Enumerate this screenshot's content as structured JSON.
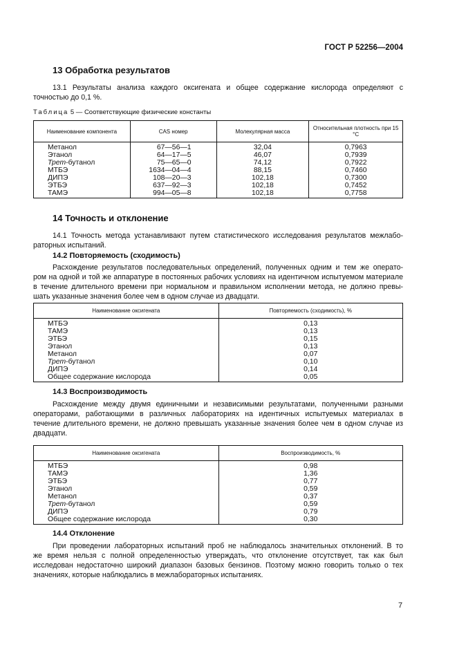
{
  "header": {
    "standard": "ГОСТ Р 52256—2004"
  },
  "s13": {
    "title": "13  Обработка результатов",
    "p1": [
      "13.1  Результаты  анализа  каждого  оксигената  и  общее  содержание  кислорода  определяют  с",
      "точностью до 0,1 %."
    ],
    "table_caption_prefix": "Таблица",
    "table_caption": " 5 — Соответствующие физические константы",
    "table": {
      "headers": [
        "Наименование компонента",
        "CAS номер",
        "Молекулярная масса",
        "Относительная плотность при 15 °С"
      ],
      "rows": [
        {
          "prefix": "",
          "name": "Метанол",
          "cas": "67—56—1",
          "mass": "32,04",
          "density": "0,7963"
        },
        {
          "prefix": "",
          "name": "Этанол",
          "cas": "64—17—5",
          "mass": "46,07",
          "density": "0,7939"
        },
        {
          "prefix": "Трет",
          "name": "-бутанол",
          "cas": "75—65—0",
          "mass": "74,12",
          "density": "0,7922"
        },
        {
          "prefix": "",
          "name": "МТБЭ",
          "cas": "1634—04—4",
          "mass": "88,15",
          "density": "0,7460"
        },
        {
          "prefix": "",
          "name": "ДИПЭ",
          "cas": "108—20—3",
          "mass": "102,18",
          "density": "0,7300"
        },
        {
          "prefix": "",
          "name": "ЭТБЭ",
          "cas": "637—92—3",
          "mass": "102,18",
          "density": "0,7452"
        },
        {
          "prefix": "",
          "name": "ТАМЭ",
          "cas": "994—05—8",
          "mass": "102,18",
          "density": "0,7758"
        }
      ]
    }
  },
  "s14": {
    "title": "14  Точность и отклонение",
    "p1": [
      "14.1  Точность метода устанавливают путем статистического исследования результатов межлабо-",
      "раторных испытаний."
    ],
    "s2_title": "14.2  Повторяемость (сходимость)",
    "s2_para": [
      "Расхождение результатов последовательных определений, полученных одним и тем же операто-",
      "ром на одной и той же аппаратуре в постоянных рабочих условиях на идентичном испытуемом материале",
      "в течение длительного времени при нормальном и правильном исполнении метода, не должно превы-",
      "шать указанные значения более чем в одном случае из двадцати."
    ],
    "s2_table": {
      "headers": [
        "Наименование оксигената",
        "Повторяемость (сходимость), %"
      ],
      "rows": [
        {
          "prefix": "",
          "name": "МТБЭ",
          "value": "0,13"
        },
        {
          "prefix": "",
          "name": "ТАМЭ",
          "value": "0,13"
        },
        {
          "prefix": "",
          "name": "ЭТБЭ",
          "value": "0,15"
        },
        {
          "prefix": "",
          "name": "Этанол",
          "value": "0,13"
        },
        {
          "prefix": "",
          "name": "Метанол",
          "value": "0,07"
        },
        {
          "prefix": "Трет",
          "name": "-бутанол",
          "value": "0,10"
        },
        {
          "prefix": "",
          "name": "ДИПЭ",
          "value": "0,14"
        },
        {
          "prefix": "",
          "name": "Общее содержание кислорода",
          "value": "0,05"
        }
      ]
    },
    "s3_title": "14.3  Воспроизводимость",
    "s3_para": [
      "Расхождение между двумя единичными и независимыми результатами, полученными разными",
      "операторами, работающими в различных лабораториях на идентичных испытуемых материалах в",
      "течение длительного времени, не должно превышать указанные значения более чем в одном случае из",
      "двадцати."
    ],
    "s3_table": {
      "headers": [
        "Наименование оксигената",
        "Воспроизводимость, %"
      ],
      "rows": [
        {
          "prefix": "",
          "name": "МТБЭ",
          "value": "0,98"
        },
        {
          "prefix": "",
          "name": "ТАМЭ",
          "value": "1,36"
        },
        {
          "prefix": "",
          "name": "ЭТБЭ",
          "value": "0,77"
        },
        {
          "prefix": "",
          "name": "Этанол",
          "value": "0,59"
        },
        {
          "prefix": "",
          "name": "Метанол",
          "value": "0,37"
        },
        {
          "prefix": "Трет",
          "name": "-бутанол",
          "value": "0,59"
        },
        {
          "prefix": "",
          "name": "ДИПЭ",
          "value": "0,79"
        },
        {
          "prefix": "",
          "name": "Общее содержание кислорода",
          "value": "0,30"
        }
      ]
    },
    "s4_title": "14.4  Отклонение",
    "s4_para": [
      "При проведении лабораторных испытаний проб не наблюдалось значительных отклонений. В то",
      "же время нельзя с полной определенностью утверждать, что отклонение отсутствует, так как был",
      "исследован недостаточно широкий диапазон базовых бензинов. Поэтому можно говорить только о тех",
      "значениях, которые наблюдались в межлабораторных испытаниях."
    ]
  },
  "footer": {
    "page_number": "7"
  }
}
